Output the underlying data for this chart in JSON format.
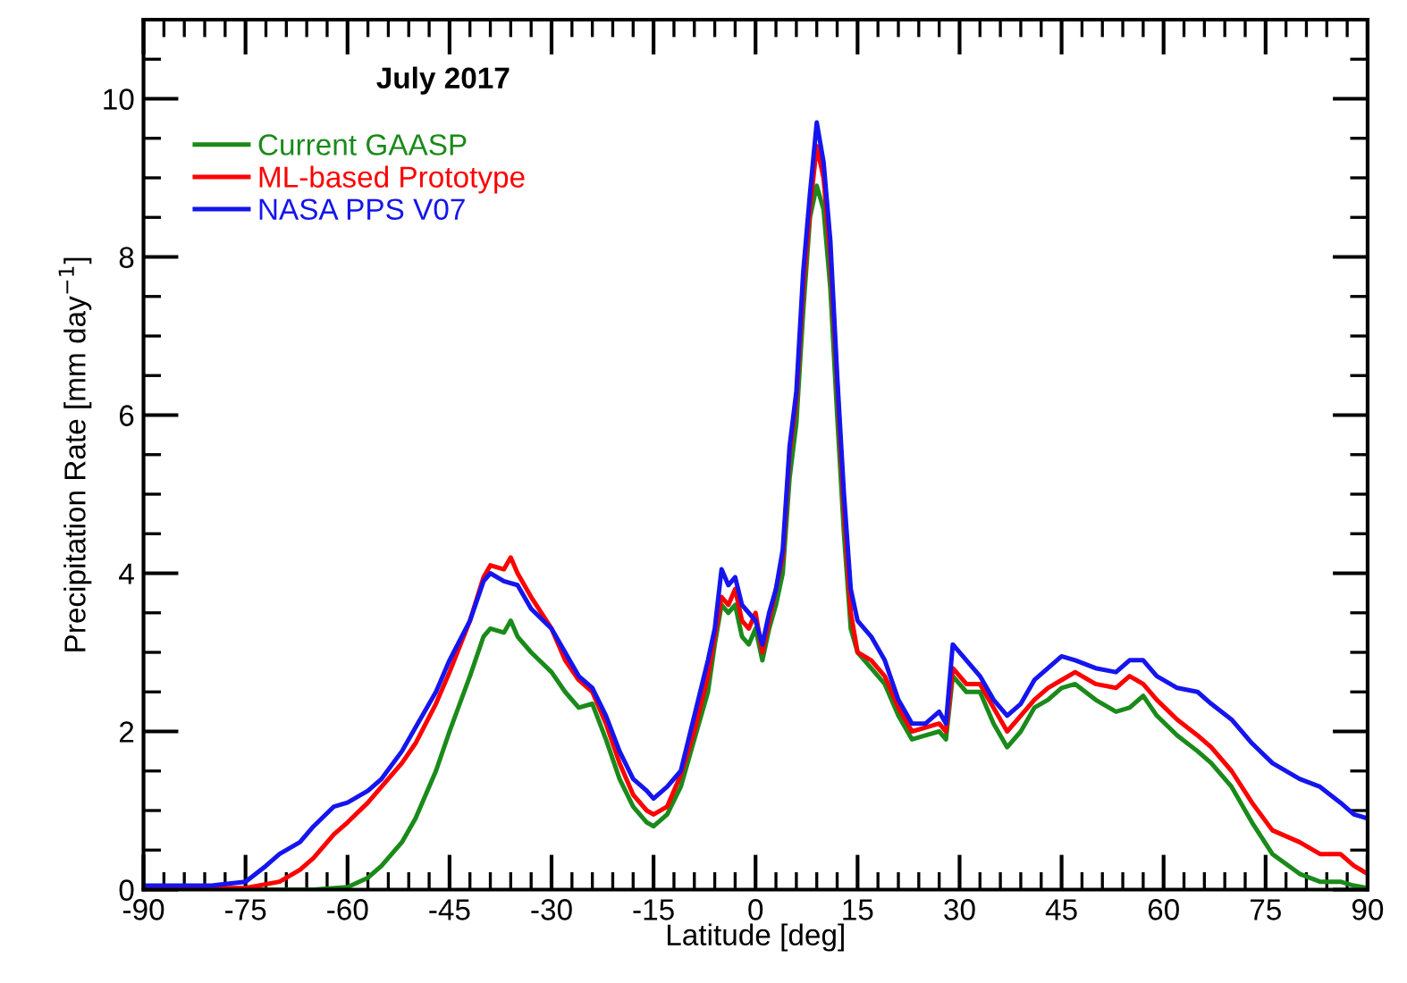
{
  "chart_data": {
    "type": "line",
    "title": "July 2017",
    "xlabel": "Latitude [deg]",
    "ylabel": "Precipitation Rate [mm day$^{−1}$]",
    "xlim": [
      -90,
      90
    ],
    "xticks": [
      -90,
      -75,
      -60,
      -45,
      -30,
      -15,
      0,
      15,
      30,
      45,
      60,
      75,
      90
    ],
    "ylim": [
      0,
      11
    ],
    "yticks": [
      0,
      2,
      4,
      6,
      8,
      10
    ],
    "grid": false,
    "legend": "top left",
    "marker": "none",
    "line_style": "solid",
    "series": [
      {
        "name": "Current GAASP",
        "color": "#1a8a1a",
        "x": [
          -90,
          -65,
          -60,
          -57,
          -55,
          -52,
          -50,
          -47,
          -45,
          -42,
          -40,
          -39,
          -37,
          -36,
          -35,
          -33,
          -30,
          -28,
          -26,
          -24,
          -22,
          -20,
          -18,
          -16,
          -15,
          -13,
          -11,
          -9,
          -7,
          -6,
          -5,
          -4,
          -3,
          -2,
          -1,
          0,
          1,
          2,
          3,
          4,
          5,
          6,
          7,
          8,
          9,
          10,
          11,
          12,
          13,
          14,
          15,
          17,
          19,
          21,
          23,
          25,
          27,
          28,
          29,
          31,
          33,
          35,
          37,
          39,
          41,
          43,
          45,
          47,
          50,
          53,
          55,
          57,
          59,
          62,
          65,
          67,
          70,
          73,
          76,
          80,
          83,
          86,
          88,
          90
        ],
        "values": [
          0,
          0,
          0.03,
          0.15,
          0.3,
          0.6,
          0.9,
          1.5,
          2.0,
          2.7,
          3.2,
          3.3,
          3.25,
          3.4,
          3.2,
          3.0,
          2.75,
          2.5,
          2.3,
          2.35,
          1.9,
          1.4,
          1.05,
          0.85,
          0.8,
          0.95,
          1.3,
          1.9,
          2.5,
          3.1,
          3.6,
          3.5,
          3.6,
          3.2,
          3.1,
          3.3,
          2.9,
          3.3,
          3.6,
          4.0,
          5.2,
          5.9,
          7.3,
          8.5,
          8.9,
          8.6,
          7.6,
          6.0,
          4.5,
          3.3,
          3.0,
          2.8,
          2.6,
          2.2,
          1.9,
          1.95,
          2.0,
          1.9,
          2.7,
          2.5,
          2.5,
          2.1,
          1.8,
          2.0,
          2.3,
          2.4,
          2.55,
          2.6,
          2.4,
          2.25,
          2.3,
          2.45,
          2.2,
          1.95,
          1.75,
          1.6,
          1.3,
          0.85,
          0.45,
          0.2,
          0.1,
          0.1,
          0.05,
          0.02
        ]
      },
      {
        "name": "ML-based Prototype",
        "color": "#ff0000",
        "x": [
          -90,
          -75,
          -70,
          -67,
          -65,
          -62,
          -60,
          -57,
          -55,
          -52,
          -50,
          -47,
          -45,
          -42,
          -40,
          -39,
          -37,
          -36,
          -35,
          -33,
          -30,
          -28,
          -26,
          -24,
          -22,
          -20,
          -18,
          -16,
          -15,
          -13,
          -11,
          -9,
          -7,
          -6,
          -5,
          -4,
          -3,
          -2,
          -1,
          0,
          1,
          2,
          3,
          4,
          5,
          6,
          7,
          8,
          9,
          10,
          11,
          12,
          13,
          14,
          15,
          17,
          19,
          21,
          23,
          25,
          27,
          28,
          29,
          31,
          33,
          35,
          37,
          39,
          41,
          43,
          45,
          47,
          50,
          53,
          55,
          57,
          59,
          62,
          65,
          67,
          70,
          73,
          76,
          80,
          83,
          86,
          88,
          90
        ],
        "values": [
          0.02,
          0.02,
          0.1,
          0.25,
          0.4,
          0.7,
          0.85,
          1.1,
          1.3,
          1.6,
          1.85,
          2.35,
          2.75,
          3.4,
          3.95,
          4.1,
          4.05,
          4.2,
          4.0,
          3.7,
          3.3,
          2.9,
          2.65,
          2.5,
          2.1,
          1.6,
          1.2,
          1.0,
          0.95,
          1.05,
          1.45,
          2.0,
          2.7,
          3.2,
          3.7,
          3.6,
          3.8,
          3.4,
          3.3,
          3.5,
          3.0,
          3.4,
          3.8,
          4.2,
          5.5,
          6.2,
          7.6,
          8.6,
          9.4,
          9.0,
          8.0,
          6.4,
          4.8,
          3.5,
          3.0,
          2.9,
          2.7,
          2.3,
          2.0,
          2.05,
          2.1,
          2.0,
          2.8,
          2.6,
          2.6,
          2.3,
          2.0,
          2.2,
          2.4,
          2.55,
          2.65,
          2.75,
          2.6,
          2.55,
          2.7,
          2.6,
          2.4,
          2.15,
          1.95,
          1.8,
          1.5,
          1.1,
          0.75,
          0.6,
          0.45,
          0.45,
          0.3,
          0.2
        ]
      },
      {
        "name": "NASA PPS V07",
        "color": "#1515ee",
        "x": [
          -90,
          -80,
          -75,
          -72,
          -70,
          -67,
          -65,
          -62,
          -60,
          -57,
          -55,
          -52,
          -50,
          -47,
          -45,
          -42,
          -40,
          -39,
          -37,
          -35,
          -33,
          -30,
          -28,
          -26,
          -24,
          -22,
          -20,
          -18,
          -16,
          -15,
          -13,
          -11,
          -9,
          -7,
          -6,
          -5,
          -4,
          -3,
          -2,
          -1,
          0,
          1,
          2,
          3,
          4,
          5,
          6,
          7,
          8,
          9,
          10,
          11,
          12,
          13,
          14,
          15,
          17,
          19,
          21,
          23,
          25,
          27,
          28,
          29,
          31,
          33,
          35,
          37,
          39,
          41,
          43,
          45,
          47,
          50,
          53,
          55,
          57,
          59,
          62,
          65,
          67,
          70,
          73,
          76,
          80,
          83,
          86,
          88,
          90
        ],
        "values": [
          0.05,
          0.05,
          0.1,
          0.3,
          0.45,
          0.6,
          0.8,
          1.05,
          1.1,
          1.25,
          1.4,
          1.75,
          2.05,
          2.5,
          2.9,
          3.4,
          3.9,
          4.0,
          3.9,
          3.85,
          3.55,
          3.3,
          3.0,
          2.7,
          2.55,
          2.2,
          1.75,
          1.4,
          1.25,
          1.15,
          1.3,
          1.5,
          2.2,
          2.9,
          3.3,
          4.05,
          3.85,
          3.95,
          3.6,
          3.5,
          3.4,
          3.1,
          3.5,
          3.8,
          4.3,
          5.6,
          6.3,
          7.8,
          8.8,
          9.7,
          9.2,
          8.2,
          6.5,
          5.0,
          3.8,
          3.4,
          3.2,
          2.9,
          2.4,
          2.1,
          2.1,
          2.25,
          2.1,
          3.1,
          2.9,
          2.7,
          2.4,
          2.2,
          2.35,
          2.65,
          2.8,
          2.95,
          2.9,
          2.8,
          2.75,
          2.9,
          2.9,
          2.7,
          2.55,
          2.5,
          2.35,
          2.15,
          1.85,
          1.6,
          1.4,
          1.3,
          1.1,
          0.95,
          0.9
        ]
      }
    ]
  }
}
